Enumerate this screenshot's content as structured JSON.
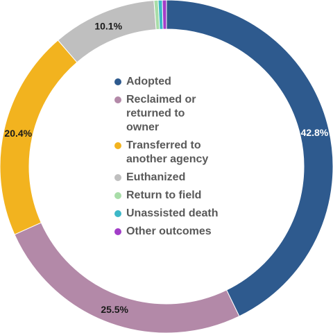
{
  "chart_data": {
    "type": "pie",
    "style": "donut",
    "categories": [
      "Adopted",
      "Reclaimed or returned to owner",
      "Transferred to another agency",
      "Euthanized",
      "Return to field",
      "Unassisted death",
      "Other outcomes"
    ],
    "values": [
      42.8,
      25.5,
      20.4,
      10.1,
      0.4,
      0.4,
      0.4
    ],
    "data_labels": [
      "42.8%",
      "25.5%",
      "20.4%",
      "10.1%",
      "",
      "",
      ""
    ],
    "colors": [
      "#2E5A8E",
      "#B389A8",
      "#F2B31F",
      "#BFBFBF",
      "#A8DDA8",
      "#3DB8C8",
      "#A23DC8"
    ],
    "label_colors": [
      "#ffffff",
      "#1a1a1a",
      "#1a1a1a",
      "#1a1a1a",
      "#1a1a1a",
      "#1a1a1a",
      "#1a1a1a"
    ],
    "legend_position": "center",
    "start": "top, clockwise"
  },
  "legend": {
    "items": [
      {
        "label": "Adopted",
        "color": "#2E5A8E"
      },
      {
        "label": "Reclaimed or returned to owner",
        "color": "#B389A8"
      },
      {
        "label": "Transferred to another agency",
        "color": "#F2B31F"
      },
      {
        "label": "Euthanized",
        "color": "#BFBFBF"
      },
      {
        "label": "Return to field",
        "color": "#A8DDA8"
      },
      {
        "label": "Unassisted death",
        "color": "#3DB8C8"
      },
      {
        "label": "Other outcomes",
        "color": "#A23DC8"
      }
    ]
  }
}
